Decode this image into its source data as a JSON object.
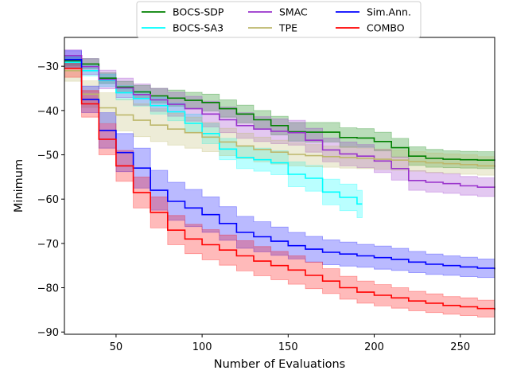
{
  "chart_data": {
    "type": "line",
    "title": "",
    "xlabel": "Number of Evaluations",
    "ylabel": "Minimum",
    "xlim": [
      20,
      270
    ],
    "ylim": [
      -90.5,
      -23.5
    ],
    "xticks": [
      50,
      100,
      150,
      200,
      250
    ],
    "yticks": [
      -30,
      -40,
      -50,
      -60,
      -70,
      -80,
      -90
    ],
    "grid": false,
    "legend_position": "top-center",
    "series": [
      {
        "name": "BOCS-SDP",
        "color": "#008000",
        "band_color": "#008000",
        "x": [
          20,
          30,
          40,
          50,
          60,
          70,
          80,
          90,
          100,
          110,
          120,
          130,
          140,
          150,
          160,
          170,
          180,
          190,
          200,
          210,
          220,
          230,
          240,
          250,
          260,
          270
        ],
        "y": [
          -28.8,
          -29.5,
          -32.7,
          -34.7,
          -35.8,
          -36.7,
          -37.2,
          -37.7,
          -38.2,
          -39.6,
          -40.8,
          -42.1,
          -43.4,
          -44.8,
          -44.9,
          -44.9,
          -46.1,
          -46.2,
          -47.0,
          -48.4,
          -50.3,
          -50.8,
          -51.0,
          -51.1,
          -51.2,
          -51.3
        ],
        "lower": [
          -29.8,
          -30.6,
          -33.9,
          -36.0,
          -37.2,
          -38.3,
          -39.0,
          -39.5,
          -40.1,
          -41.5,
          -42.8,
          -44.2,
          -45.5,
          -46.9,
          -47.1,
          -47.1,
          -48.3,
          -48.3,
          -49.1,
          -50.5,
          -52.4,
          -52.8,
          -52.9,
          -53.0,
          -53.1,
          -53.2
        ],
        "upper": [
          -27.6,
          -28.3,
          -31.5,
          -33.4,
          -34.3,
          -35.0,
          -35.4,
          -35.9,
          -36.3,
          -37.6,
          -38.8,
          -40.0,
          -41.3,
          -42.7,
          -42.7,
          -42.7,
          -43.9,
          -44.1,
          -44.9,
          -46.3,
          -48.2,
          -48.8,
          -49.1,
          -49.2,
          -49.3,
          -49.4
        ]
      },
      {
        "name": "BOCS-SA3",
        "color": "#00ffff",
        "band_color": "#00ffff",
        "x": [
          20,
          30,
          40,
          50,
          60,
          70,
          80,
          90,
          100,
          110,
          120,
          130,
          140,
          150,
          160,
          170,
          180,
          190,
          193
        ],
        "y": [
          -29.1,
          -31.0,
          -33.2,
          -36.0,
          -37.3,
          -38.9,
          -40.3,
          -42.9,
          -45.2,
          -48.7,
          -50.6,
          -51.1,
          -51.8,
          -54.4,
          -55.3,
          -58.4,
          -59.6,
          -61.1,
          -61.1
        ],
        "lower": [
          -30.2,
          -32.2,
          -34.6,
          -37.6,
          -39.0,
          -40.8,
          -42.3,
          -45.0,
          -47.5,
          -51.1,
          -53.1,
          -53.7,
          -54.5,
          -57.2,
          -58.2,
          -61.3,
          -62.6,
          -64.2,
          -64.2
        ],
        "upper": [
          -27.9,
          -29.8,
          -31.8,
          -34.4,
          -35.6,
          -37.0,
          -38.3,
          -40.8,
          -42.9,
          -46.3,
          -48.1,
          -48.5,
          -49.1,
          -51.6,
          -52.4,
          -55.5,
          -56.6,
          -58.0,
          -58.0
        ]
      },
      {
        "name": "SMAC",
        "color": "#9932cc",
        "band_color": "#9932cc",
        "x": [
          20,
          30,
          40,
          50,
          60,
          70,
          80,
          90,
          100,
          110,
          120,
          130,
          140,
          150,
          160,
          170,
          180,
          190,
          200,
          210,
          220,
          230,
          240,
          250,
          260,
          270
        ],
        "y": [
          -27.6,
          -30.1,
          -33.0,
          -34.9,
          -36.4,
          -37.6,
          -38.6,
          -39.6,
          -40.8,
          -42.1,
          -43.4,
          -44.2,
          -44.7,
          -45.0,
          -46.7,
          -48.9,
          -49.8,
          -50.3,
          -51.4,
          -53.1,
          -55.8,
          -56.2,
          -56.5,
          -57.0,
          -57.3,
          -57.4
        ],
        "lower": [
          -28.9,
          -31.9,
          -35.1,
          -37.1,
          -38.8,
          -40.2,
          -41.3,
          -42.4,
          -43.7,
          -45.0,
          -46.3,
          -47.0,
          -47.5,
          -47.8,
          -49.4,
          -51.6,
          -52.5,
          -52.9,
          -54.0,
          -55.7,
          -58.0,
          -58.4,
          -58.7,
          -59.1,
          -59.4,
          -59.5
        ],
        "upper": [
          -26.3,
          -28.3,
          -30.9,
          -32.7,
          -34.0,
          -35.0,
          -35.9,
          -36.8,
          -37.9,
          -39.2,
          -40.5,
          -41.4,
          -41.9,
          -42.2,
          -44.0,
          -46.2,
          -47.1,
          -47.7,
          -48.8,
          -50.5,
          -53.6,
          -54.0,
          -54.3,
          -54.9,
          -55.2,
          -55.3
        ]
      },
      {
        "name": "TPE",
        "color": "#bdb76b",
        "band_color": "#bdb76b",
        "x": [
          20,
          30,
          40,
          50,
          60,
          70,
          80,
          90,
          100,
          110,
          120,
          130,
          140,
          150,
          160,
          170,
          180,
          190,
          200,
          210,
          220,
          230,
          240,
          250,
          260,
          270
        ],
        "y": [
          -31.0,
          -36.3,
          -39.4,
          -41.0,
          -42.2,
          -43.3,
          -44.2,
          -45.0,
          -46.0,
          -47.1,
          -48.0,
          -48.8,
          -49.4,
          -49.9,
          -50.2,
          -50.4,
          -50.6,
          -50.8,
          -51.0,
          -51.2,
          -51.5,
          -51.8,
          -52.0,
          -52.2,
          -52.5,
          -52.7
        ],
        "lower": [
          -33.4,
          -39.3,
          -42.8,
          -44.6,
          -45.9,
          -47.0,
          -47.8,
          -48.5,
          -49.3,
          -50.2,
          -50.9,
          -51.6,
          -52.1,
          -52.5,
          -52.7,
          -52.8,
          -53.0,
          -53.1,
          -53.3,
          -53.5,
          -53.7,
          -54.0,
          -54.2,
          -54.4,
          -54.6,
          -54.8
        ],
        "upper": [
          -28.6,
          -33.3,
          -36.0,
          -37.4,
          -38.5,
          -39.6,
          -40.6,
          -41.5,
          -42.7,
          -44.0,
          -45.1,
          -46.0,
          -46.7,
          -47.3,
          -47.7,
          -48.0,
          -48.2,
          -48.5,
          -48.7,
          -48.9,
          -49.3,
          -49.6,
          -49.8,
          -50.0,
          -50.4,
          -50.6
        ]
      },
      {
        "name": "Sim.Ann.",
        "color": "#0000ff",
        "band_color": "#0000ff",
        "x": [
          20,
          30,
          40,
          50,
          60,
          70,
          80,
          90,
          100,
          110,
          120,
          130,
          140,
          150,
          160,
          170,
          180,
          190,
          200,
          210,
          220,
          230,
          240,
          250,
          260,
          270
        ],
        "y": [
          -28.5,
          -37.5,
          -44.5,
          -49.5,
          -53.0,
          -58.0,
          -60.5,
          -62.0,
          -63.5,
          -65.5,
          -67.5,
          -68.5,
          -69.5,
          -70.5,
          -71.3,
          -72.0,
          -72.4,
          -72.8,
          -73.2,
          -73.6,
          -74.2,
          -74.7,
          -75.0,
          -75.3,
          -75.6,
          -75.8
        ],
        "lower": [
          -30.5,
          -40.5,
          -48.5,
          -53.8,
          -57.5,
          -62.5,
          -64.8,
          -66.2,
          -67.5,
          -69.3,
          -71.1,
          -71.9,
          -72.7,
          -73.5,
          -74.2,
          -74.8,
          -75.1,
          -75.4,
          -75.8,
          -76.1,
          -76.6,
          -77.0,
          -77.2,
          -77.5,
          -77.7,
          -77.8
        ],
        "upper": [
          -26.5,
          -34.5,
          -40.5,
          -45.2,
          -48.5,
          -53.5,
          -56.2,
          -57.8,
          -59.5,
          -61.7,
          -63.9,
          -65.1,
          -66.3,
          -67.5,
          -68.4,
          -69.2,
          -69.7,
          -70.2,
          -70.6,
          -71.1,
          -71.8,
          -72.4,
          -72.8,
          -73.1,
          -73.5,
          -73.8
        ]
      },
      {
        "name": "COMBO",
        "color": "#ff0000",
        "band_color": "#ff0000",
        "x": [
          20,
          30,
          40,
          50,
          60,
          70,
          80,
          90,
          100,
          110,
          120,
          130,
          140,
          150,
          160,
          170,
          180,
          190,
          200,
          210,
          220,
          230,
          240,
          250,
          260,
          270
        ],
        "y": [
          -30.5,
          -38.5,
          -46.5,
          -52.5,
          -58.5,
          -63.0,
          -67.0,
          -69.0,
          -70.3,
          -71.5,
          -72.8,
          -74.0,
          -75.0,
          -76.0,
          -77.2,
          -78.5,
          -80.0,
          -81.0,
          -81.7,
          -82.3,
          -83.0,
          -83.5,
          -84.0,
          -84.3,
          -84.7,
          -85.0
        ],
        "lower": [
          -32.5,
          -41.5,
          -50.0,
          -56.0,
          -62.0,
          -66.5,
          -70.3,
          -72.3,
          -73.7,
          -74.9,
          -76.2,
          -77.3,
          -78.2,
          -79.2,
          -80.2,
          -81.3,
          -82.6,
          -83.5,
          -84.1,
          -84.6,
          -85.2,
          -85.6,
          -86.0,
          -86.3,
          -86.6,
          -86.9
        ],
        "upper": [
          -28.5,
          -35.5,
          -43.0,
          -49.0,
          -55.0,
          -59.5,
          -63.7,
          -65.7,
          -66.9,
          -68.1,
          -69.4,
          -70.7,
          -71.8,
          -72.8,
          -74.2,
          -75.7,
          -77.4,
          -78.5,
          -79.3,
          -80.0,
          -80.8,
          -81.4,
          -82.0,
          -82.3,
          -82.8,
          -83.1
        ]
      }
    ]
  }
}
